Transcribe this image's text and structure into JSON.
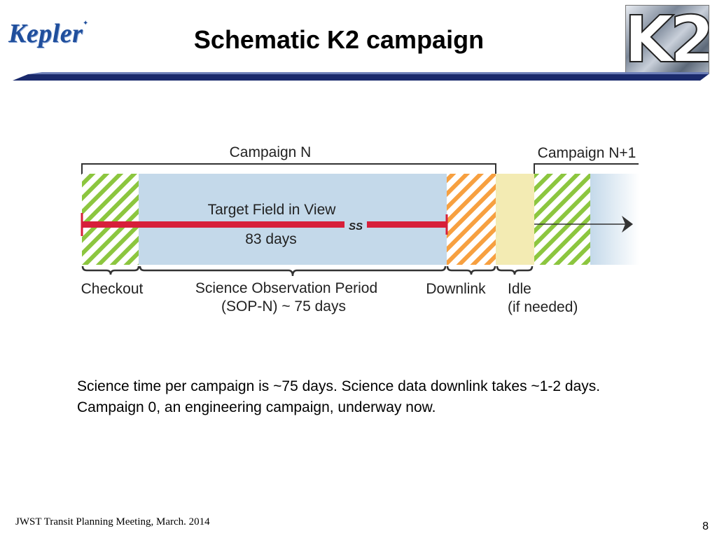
{
  "header": {
    "logo_text": "Kepler",
    "title": "Schematic K2 campaign",
    "k2_logo_text": "K2"
  },
  "diagram": {
    "campaign_n_label": "Campaign N",
    "campaign_n1_label": "Campaign N+1",
    "target_field_label": "Target Field in View",
    "target_field_days": "83 days",
    "break_symbol": "SS",
    "phases": [
      {
        "label": "Checkout",
        "sublabel": ""
      },
      {
        "label": "Science Observation Period",
        "sublabel": "(SOP-N) ~ 75 days"
      },
      {
        "label": "Downlink",
        "sublabel": ""
      },
      {
        "label": "Idle",
        "sublabel": "(if needed)"
      }
    ],
    "colors": {
      "checkout_hatch": "#8cc63f",
      "science_fill": "#c4d9ea",
      "downlink_hatch": "#f7a040",
      "idle_fill": "#f3ebb3",
      "timeline_bar": "#d71f3a",
      "bracket": "#333333"
    }
  },
  "body": {
    "text": "Science time per campaign is ~75 days. Science data downlink takes ~1-2 days. Campaign 0, an engineering campaign, underway now."
  },
  "footer": {
    "left": "JWST Transit Planning Meeting, March. 2014",
    "page_number": "8"
  }
}
